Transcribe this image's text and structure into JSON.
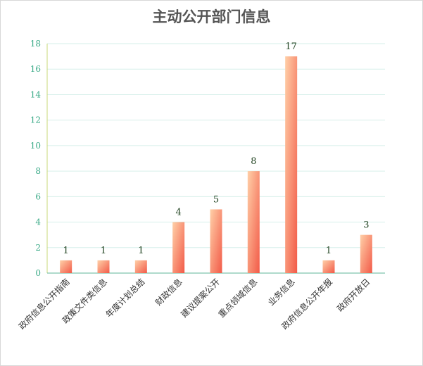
{
  "chart_data": {
    "type": "bar",
    "title": "主动公开部门信息",
    "categories": [
      "政府信息公开指南",
      "政策文件类信息",
      "年度计划总结",
      "财政信息",
      "建议提案公开",
      "重点领域信息",
      "业务信息",
      "政府信息公开年报",
      "政府开放日"
    ],
    "values": [
      1,
      1,
      1,
      4,
      5,
      8,
      17,
      1,
      3
    ],
    "ylim": [
      0,
      18
    ],
    "yticks": [
      0,
      2,
      4,
      6,
      8,
      10,
      12,
      14,
      16,
      18
    ],
    "grid": true,
    "colors": {
      "bar_top": "#ffd0a8",
      "bar_bottom": "#f25a48",
      "grid": "#d6efea",
      "axis": "#5fb59a",
      "tick_label": "#3aaa87",
      "y_axis_line": "#c8d97a",
      "value_label": "#224422",
      "category_label": "#333333"
    }
  }
}
